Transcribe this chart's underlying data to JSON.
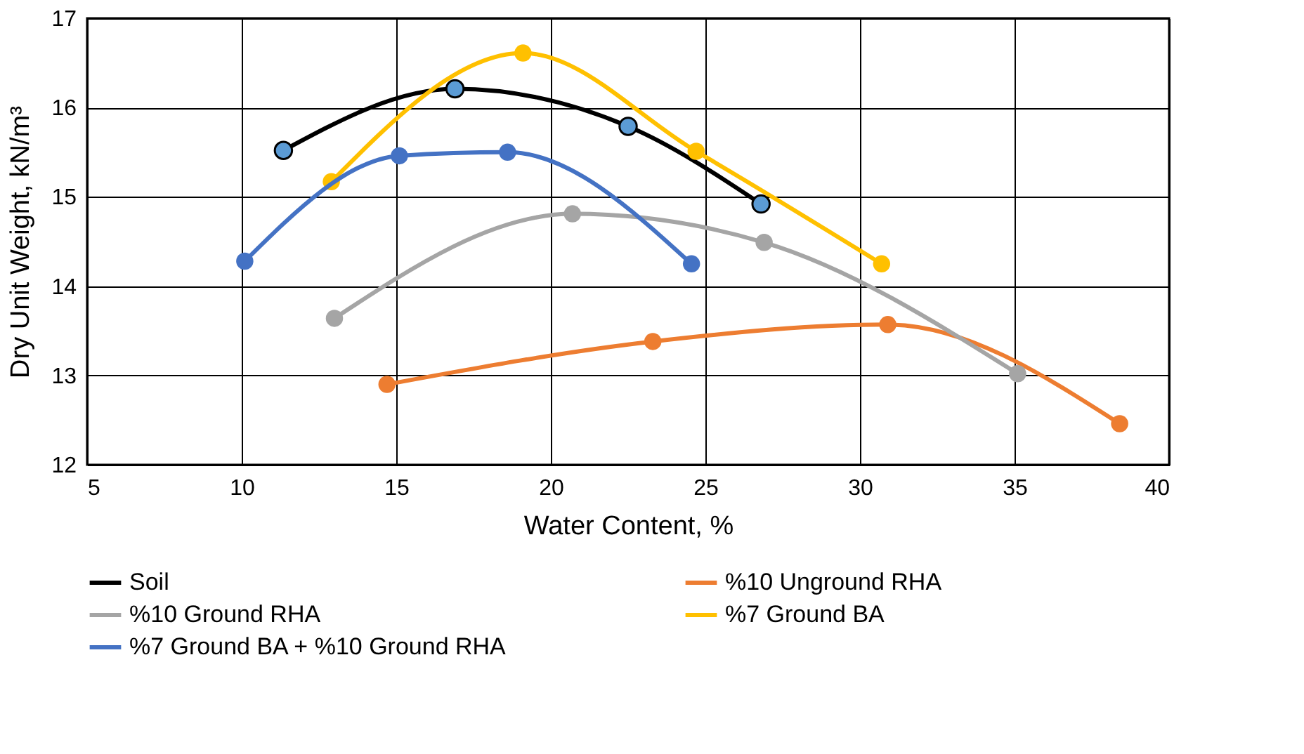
{
  "chart_data": {
    "type": "line",
    "xlabel": "Water Content, %",
    "ylabel": "Dry Unit Weight, kN/m³",
    "xlim": [
      5,
      40
    ],
    "xticks": [
      5,
      10,
      15,
      20,
      25,
      30,
      35,
      40
    ],
    "ylim": [
      12,
      17
    ],
    "yticks": [
      12,
      13,
      14,
      15,
      16,
      17
    ],
    "grid": true,
    "legend": "bottom",
    "marker": "circle",
    "line_style": "solid",
    "series": [
      {
        "name": "Soil",
        "color": "#000000",
        "colors": [
          "#5b9bd5",
          "#5b9bd5",
          "#5b9bd5",
          "#5b9bd5"
        ],
        "x": [
          11.35,
          16.9,
          22.5,
          26.8
        ],
        "values": [
          15.52,
          16.21,
          15.79,
          14.92
        ]
      },
      {
        "name": "%10 Unground RHA",
        "color": "#ed7d31",
        "x": [
          14.7,
          23.3,
          30.9,
          38.4
        ],
        "values": [
          12.9,
          13.38,
          13.57,
          12.46
        ]
      },
      {
        "name": "%10 Ground RHA",
        "color": "#a5a5a5",
        "x": [
          13.0,
          20.7,
          26.9,
          35.1
        ],
        "values": [
          13.64,
          14.81,
          14.49,
          13.02
        ]
      },
      {
        "name": "%7 Ground BA",
        "color": "#ffc000",
        "x": [
          12.9,
          19.1,
          24.7,
          30.7
        ],
        "values": [
          15.17,
          16.61,
          15.51,
          14.25
        ]
      },
      {
        "name": "%7 Ground BA + %10 Ground RHA",
        "color": "#4472c4",
        "x": [
          10.1,
          15.1,
          18.6,
          24.55
        ],
        "values": [
          14.28,
          15.46,
          15.5,
          14.25
        ]
      }
    ]
  }
}
